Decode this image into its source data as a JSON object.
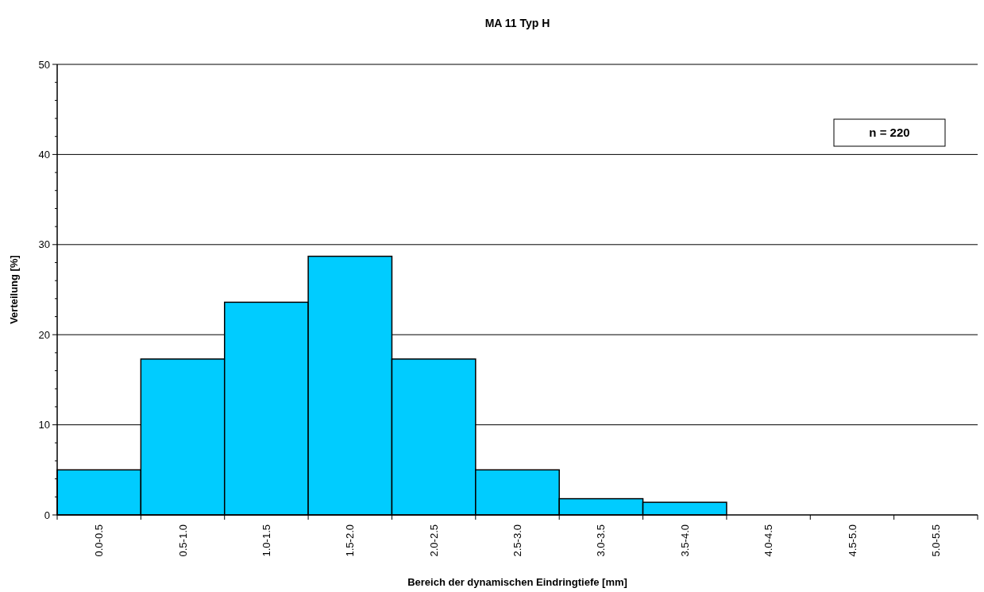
{
  "chart_data": {
    "type": "bar",
    "title": "MA 11 Typ H",
    "xlabel": "Bereich der dynamischen Eindringtiefe  [mm]",
    "ylabel": "Verteilung  [%]",
    "categories": [
      "0.0-0.5",
      "0.5-1.0",
      "1.0-1.5",
      "1.5-2.0",
      "2.0-2.5",
      "2.5-3.0",
      "3.0-3.5",
      "3.5-4.0",
      "4.0-4.5",
      "4.5-5.0",
      "5.0-5.5"
    ],
    "values": [
      5.0,
      17.3,
      23.6,
      28.7,
      17.3,
      5.0,
      1.8,
      1.4,
      0,
      0,
      0
    ],
    "color": "#00ccff",
    "ylim": [
      0,
      50
    ],
    "yticks": [
      0,
      {
        "value": 2,
        "label": null
      },
      {
        "value": 4,
        "label": null
      },
      {
        "value": 6,
        "label": null
      },
      {
        "value": 8,
        "label": null
      },
      10,
      {
        "value": 12,
        "label": null
      },
      {
        "value": 14,
        "label": null
      },
      {
        "value": 16,
        "label": null
      },
      {
        "value": 18,
        "label": null
      },
      20,
      {
        "value": 22,
        "label": null
      },
      {
        "value": 24,
        "label": null
      },
      {
        "value": 26,
        "label": null
      },
      {
        "value": 28,
        "label": null
      },
      30,
      {
        "value": 32,
        "label": null
      },
      {
        "value": 34,
        "label": null
      },
      {
        "value": 36,
        "label": null
      },
      {
        "value": 38,
        "label": null
      },
      40,
      {
        "value": 42,
        "label": null
      },
      {
        "value": 44,
        "label": null
      },
      {
        "value": 46,
        "label": null
      },
      {
        "value": 48,
        "label": null
      },
      50
    ],
    "grid": "y",
    "annotations": [
      "n = 220"
    ]
  }
}
